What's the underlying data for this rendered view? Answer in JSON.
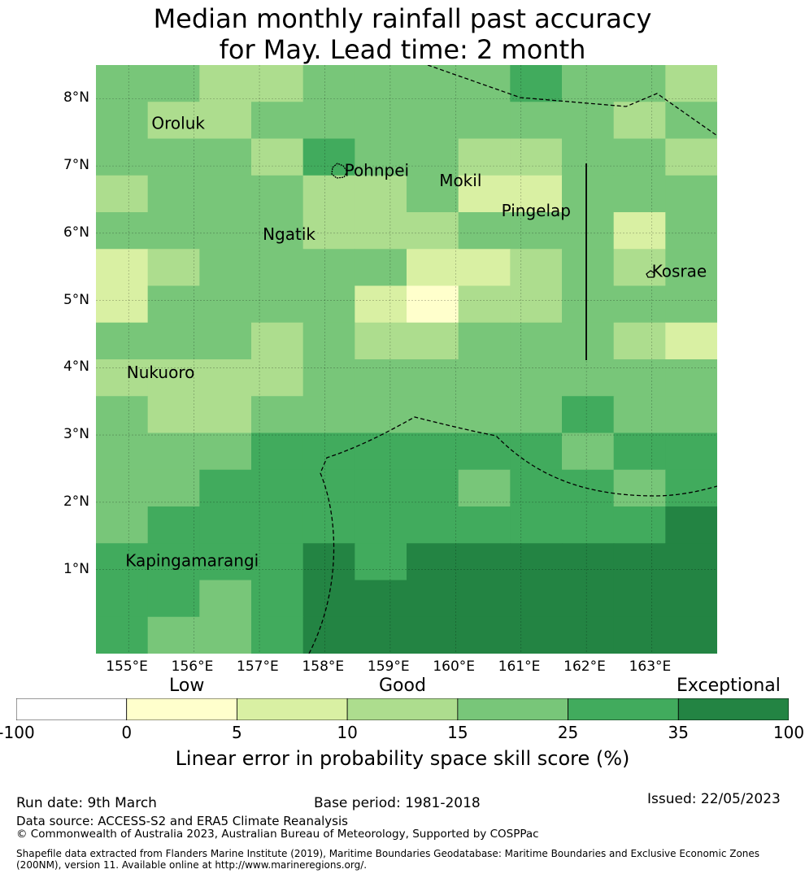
{
  "title_line1": "Median monthly rainfall past accuracy",
  "title_line2": "for May. Lead time: 2 month",
  "map": {
    "lon_min": 154.5,
    "lon_max": 164.0,
    "lat_min": -0.25,
    "lat_max": 8.5,
    "cell_lon_step": 0.833,
    "cell_lat_step": 0.5556,
    "lat_labels": [
      "8°N",
      "7°N",
      "6°N",
      "5°N",
      "4°N",
      "3°N",
      "2°N",
      "1°N"
    ],
    "lon_labels": [
      "155°E",
      "156°E",
      "157°E",
      "158°E",
      "159°E",
      "160°E",
      "161°E",
      "162°E",
      "163°E"
    ],
    "grid_rows": [
      [
        4,
        4,
        3,
        3,
        4,
        4,
        4,
        4,
        5,
        4,
        4,
        3
      ],
      [
        4,
        3,
        3,
        4,
        4,
        4,
        4,
        4,
        4,
        4,
        3,
        4
      ],
      [
        4,
        4,
        4,
        3,
        5,
        4,
        4,
        3,
        3,
        4,
        4,
        3
      ],
      [
        3,
        4,
        4,
        4,
        3,
        3,
        4,
        2,
        2,
        4,
        4,
        4
      ],
      [
        4,
        4,
        4,
        4,
        3,
        3,
        3,
        4,
        4,
        4,
        2,
        4
      ],
      [
        2,
        3,
        4,
        4,
        4,
        4,
        2,
        2,
        3,
        4,
        3,
        4
      ],
      [
        2,
        4,
        4,
        4,
        4,
        2,
        1,
        3,
        3,
        4,
        4,
        4
      ],
      [
        4,
        4,
        4,
        3,
        4,
        3,
        3,
        4,
        4,
        4,
        3,
        2
      ],
      [
        3,
        3,
        3,
        3,
        4,
        4,
        4,
        4,
        4,
        4,
        4,
        4
      ],
      [
        4,
        3,
        3,
        4,
        4,
        4,
        4,
        4,
        4,
        5,
        4,
        4
      ],
      [
        4,
        4,
        4,
        5,
        5,
        5,
        5,
        5,
        5,
        4,
        5,
        5
      ],
      [
        4,
        4,
        5,
        5,
        5,
        5,
        5,
        4,
        5,
        5,
        4,
        5
      ],
      [
        4,
        5,
        5,
        5,
        5,
        5,
        5,
        5,
        5,
        5,
        5,
        6
      ],
      [
        5,
        5,
        5,
        5,
        6,
        5,
        6,
        6,
        6,
        6,
        6,
        6
      ],
      [
        5,
        5,
        4,
        5,
        6,
        6,
        6,
        6,
        6,
        6,
        6,
        6
      ],
      [
        5,
        4,
        4,
        5,
        6,
        6,
        6,
        6,
        6,
        6,
        6,
        6
      ]
    ],
    "places": [
      {
        "name": "Oroluk",
        "lon": 155.35,
        "lat": 7.55
      },
      {
        "name": "Pohnpei",
        "lon": 158.3,
        "lat": 6.85
      },
      {
        "name": "Mokil",
        "lon": 159.75,
        "lat": 6.7
      },
      {
        "name": "Pingelap",
        "lon": 160.7,
        "lat": 6.25
      },
      {
        "name": "Ngatik",
        "lon": 157.05,
        "lat": 5.9
      },
      {
        "name": "Kosrae",
        "lon": 163.0,
        "lat": 5.35
      },
      {
        "name": "Nukuoro",
        "lon": 154.97,
        "lat": 3.85
      },
      {
        "name": "Kapingamarangi",
        "lon": 154.95,
        "lat": 1.05
      }
    ],
    "line_color": "#000000"
  },
  "colorbar": {
    "categories": [
      "Low",
      "Good",
      "Exceptional"
    ],
    "ticks": [
      "-100",
      "0",
      "5",
      "10",
      "15",
      "25",
      "35",
      "100"
    ],
    "colors": [
      "#ffffff",
      "#ffffcc",
      "#d9f0a3",
      "#addd8e",
      "#78c679",
      "#41ab5d",
      "#238443"
    ],
    "label": "Linear error in probability space skill score (%)"
  },
  "footer": {
    "run_date": "Run date: 9th March",
    "base_period": "Base period: 1981-2018",
    "issued": "Issued: 22/05/2023",
    "data_source": "Data source: ACCESS-S2 and ERA5 Climate Reanalysis",
    "copyright": "© Commonwealth of Australia 2023, Australian Bureau of Meteorology, Supported by COSPPac",
    "shapefile_1": "Shapefile data extracted from Flanders Marine Institute (2019), Maritime Boundaries Geodatabase: Maritime Boundaries and Exclusive Economic Zones",
    "shapefile_2": "(200NM), version 11. Available online at http://www.marineregions.org/."
  }
}
